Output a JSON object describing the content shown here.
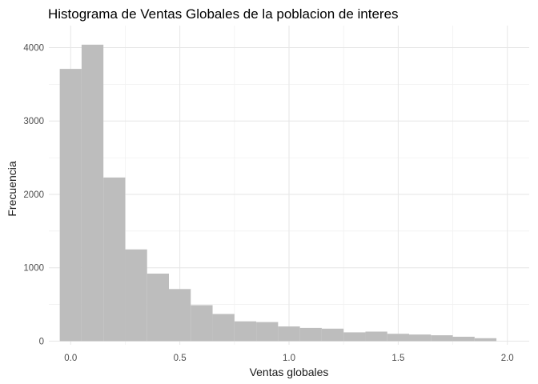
{
  "chart_data": {
    "type": "histogram",
    "title": "Histograma de Ventas Globales de la poblacion de interes",
    "xlabel": "Ventas globales",
    "ylabel": "Frecuencia",
    "xlim": [
      -0.1,
      2.1
    ],
    "ylim": [
      -50,
      4300
    ],
    "bin_width": 0.1,
    "x_ticks": [
      0.0,
      0.5,
      1.0,
      1.5,
      2.0
    ],
    "x_tick_labels": [
      "0.0",
      "0.5",
      "1.0",
      "1.5",
      "2.0"
    ],
    "y_ticks": [
      0,
      1000,
      2000,
      3000,
      4000
    ],
    "y_tick_labels": [
      "0",
      "1000",
      "2000",
      "3000",
      "4000"
    ],
    "grid": true,
    "legend": "none",
    "bar_color": "#bdbdbd",
    "bins": [
      {
        "center": 0.0,
        "count": 3710
      },
      {
        "center": 0.1,
        "count": 4040
      },
      {
        "center": 0.2,
        "count": 2230
      },
      {
        "center": 0.3,
        "count": 1250
      },
      {
        "center": 0.4,
        "count": 920
      },
      {
        "center": 0.5,
        "count": 710
      },
      {
        "center": 0.6,
        "count": 490
      },
      {
        "center": 0.7,
        "count": 370
      },
      {
        "center": 0.8,
        "count": 270
      },
      {
        "center": 0.9,
        "count": 260
      },
      {
        "center": 1.0,
        "count": 200
      },
      {
        "center": 1.1,
        "count": 180
      },
      {
        "center": 1.2,
        "count": 170
      },
      {
        "center": 1.3,
        "count": 120
      },
      {
        "center": 1.4,
        "count": 130
      },
      {
        "center": 1.5,
        "count": 100
      },
      {
        "center": 1.6,
        "count": 90
      },
      {
        "center": 1.7,
        "count": 80
      },
      {
        "center": 1.8,
        "count": 60
      },
      {
        "center": 1.9,
        "count": 40
      }
    ]
  }
}
